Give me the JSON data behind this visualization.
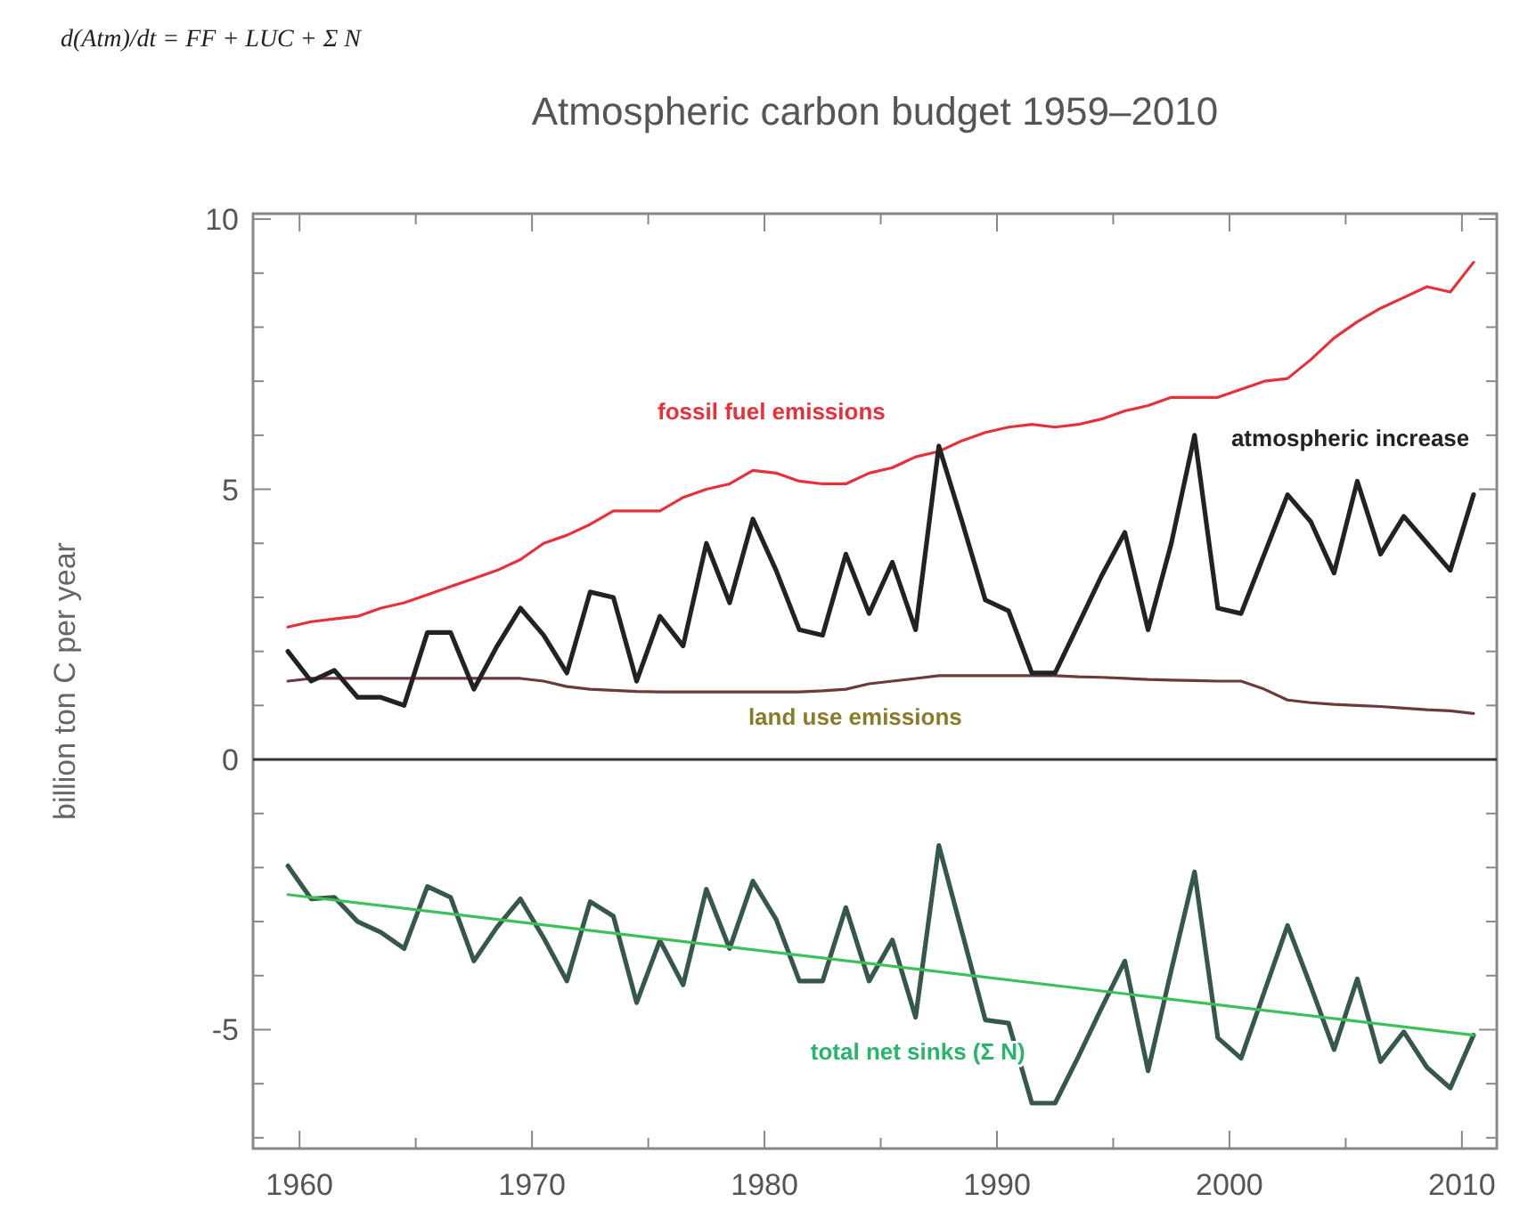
{
  "chart_data": {
    "type": "line",
    "title": "Atmospheric carbon budget 1959–2010",
    "ylabel": "billion ton C per year",
    "annotations": [
      "d(Atm)/dt = FF + LUC + Σ N"
    ],
    "x": [
      1959.5,
      1960.5,
      1961.5,
      1962.5,
      1963.5,
      1964.5,
      1965.5,
      1966.5,
      1967.5,
      1968.5,
      1969.5,
      1970.5,
      1971.5,
      1972.5,
      1973.5,
      1974.5,
      1975.5,
      1976.5,
      1977.5,
      1978.5,
      1979.5,
      1980.5,
      1981.5,
      1982.5,
      1983.5,
      1984.5,
      1985.5,
      1986.5,
      1987.5,
      1988.5,
      1989.5,
      1990.5,
      1991.5,
      1992.5,
      1993.5,
      1994.5,
      1995.5,
      1996.5,
      1997.5,
      1998.5,
      1999.5,
      2000.5,
      2001.5,
      2002.5,
      2003.5,
      2004.5,
      2005.5,
      2006.5,
      2007.5,
      2008.5,
      2009.5,
      2010.5
    ],
    "series": [
      {
        "name": "fossil fuel emissions",
        "color": "#e8303a",
        "values": [
          2.45,
          2.55,
          2.6,
          2.65,
          2.8,
          2.9,
          3.05,
          3.2,
          3.35,
          3.5,
          3.7,
          4.0,
          4.15,
          4.35,
          4.6,
          4.6,
          4.6,
          4.85,
          5.0,
          5.1,
          5.35,
          5.3,
          5.15,
          5.1,
          5.1,
          5.3,
          5.4,
          5.6,
          5.7,
          5.9,
          6.05,
          6.15,
          6.2,
          6.15,
          6.2,
          6.3,
          6.45,
          6.55,
          6.7,
          6.7,
          6.7,
          6.85,
          7.0,
          7.05,
          7.4,
          7.8,
          8.1,
          8.35,
          8.55,
          8.75,
          8.65,
          9.2
        ]
      },
      {
        "name": "land use emissions",
        "color": "#6b3a3a",
        "values": [
          1.45,
          1.5,
          1.5,
          1.5,
          1.5,
          1.5,
          1.5,
          1.5,
          1.5,
          1.5,
          1.5,
          1.45,
          1.35,
          1.3,
          1.28,
          1.26,
          1.25,
          1.25,
          1.25,
          1.25,
          1.25,
          1.25,
          1.25,
          1.27,
          1.3,
          1.4,
          1.45,
          1.5,
          1.55,
          1.55,
          1.55,
          1.55,
          1.55,
          1.55,
          1.53,
          1.52,
          1.5,
          1.48,
          1.47,
          1.46,
          1.45,
          1.45,
          1.3,
          1.1,
          1.05,
          1.02,
          1.0,
          0.98,
          0.95,
          0.92,
          0.9,
          0.85
        ]
      },
      {
        "name": "atmospheric increase",
        "color": "#222222",
        "values": [
          2.0,
          1.45,
          1.65,
          1.15,
          1.15,
          1.0,
          2.35,
          2.35,
          1.3,
          2.1,
          2.8,
          2.3,
          1.6,
          3.1,
          3.0,
          1.45,
          2.65,
          2.1,
          4.0,
          2.9,
          4.45,
          3.5,
          2.4,
          2.3,
          3.8,
          2.7,
          3.65,
          2.4,
          5.8,
          4.4,
          2.95,
          2.75,
          1.6,
          1.6,
          2.5,
          3.4,
          4.2,
          2.4,
          4.0,
          6.0,
          2.8,
          2.7,
          3.8,
          4.9,
          4.4,
          3.45,
          5.15,
          3.8,
          4.5,
          4.0,
          3.5,
          4.9
        ]
      },
      {
        "name": "total net sinks (Σ N)",
        "color": "#35584a",
        "values": [
          -1.97,
          -2.58,
          -2.55,
          -3.0,
          -3.2,
          -3.5,
          -2.35,
          -2.55,
          -3.73,
          -3.1,
          -2.58,
          -3.3,
          -4.1,
          -2.63,
          -2.9,
          -4.5,
          -3.35,
          -4.17,
          -2.4,
          -3.5,
          -2.25,
          -2.96,
          -4.1,
          -4.1,
          -2.74,
          -4.1,
          -3.34,
          -4.77,
          -1.59,
          -3.2,
          -4.82,
          -4.88,
          -6.36,
          -6.36,
          -5.5,
          -4.6,
          -3.73,
          -5.76,
          -3.9,
          -2.08,
          -5.15,
          -5.53,
          -4.3,
          -3.07,
          -4.2,
          -5.37,
          -4.06,
          -5.59,
          -5.04,
          -5.7,
          -6.08,
          -5.1
        ]
      },
      {
        "color": "#3cc05a",
        "x": [
          1959.5,
          2010.5
        ],
        "values": [
          -2.5,
          -5.1
        ]
      }
    ],
    "xlim": [
      1958,
      2011.5
    ],
    "xticks": [
      1960,
      {
        "value": 1965,
        "label": null
      },
      1970,
      {
        "value": 1975,
        "label": null
      },
      1980,
      {
        "value": 1985,
        "label": null
      },
      1990,
      {
        "value": 1995,
        "label": null
      },
      2000,
      {
        "value": 2005,
        "label": null
      },
      2010
    ],
    "ylim": [
      -7.2,
      10.1
    ],
    "yticks": [
      {
        "value": -7,
        "label": null
      },
      {
        "value": -6,
        "label": null
      },
      -5,
      {
        "value": -4,
        "label": null
      },
      {
        "value": -3,
        "label": null
      },
      {
        "value": -2,
        "label": null
      },
      {
        "value": -1,
        "label": null
      },
      0,
      {
        "value": 1,
        "label": null
      },
      {
        "value": 2,
        "label": null
      },
      {
        "value": 3,
        "label": null
      },
      {
        "value": 4,
        "label": null
      },
      5,
      {
        "value": 6,
        "label": null
      },
      {
        "value": 7,
        "label": null
      },
      {
        "value": 8,
        "label": null
      },
      {
        "value": 9,
        "label": null
      },
      10
    ],
    "ref_lines": [
      {
        "axis": "y",
        "value": 0,
        "color": "#333333"
      }
    ],
    "grid": false,
    "marker": "none",
    "line_style": "solid"
  }
}
